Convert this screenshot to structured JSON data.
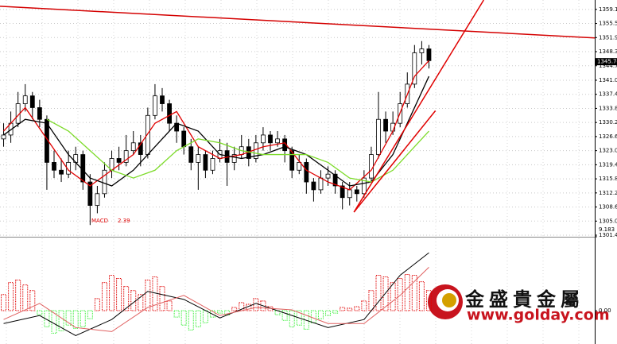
{
  "chart_data": {
    "type": "candlestick",
    "xlim": [
      -0.5,
      82
    ],
    "ylim": [
      1301.0,
      1361.5
    ],
    "grid": true,
    "yticks": [
      {
        "value": 1359.1,
        "label": "1359.10"
      },
      {
        "value": 1355.5,
        "label": "1355.50"
      },
      {
        "value": 1351.9,
        "label": "1351.90"
      },
      {
        "value": 1348.3,
        "label": "1348.30"
      },
      {
        "value": 1344.7,
        "label": "1344.70"
      },
      {
        "value": 1341.0,
        "label": "1341.00"
      },
      {
        "value": 1337.4,
        "label": "1337.40"
      },
      {
        "value": 1333.8,
        "label": "1333.80"
      },
      {
        "value": 1330.2,
        "label": "1330.20"
      },
      {
        "value": 1326.6,
        "label": "1326.60"
      },
      {
        "value": 1323.0,
        "label": "1323.00"
      },
      {
        "value": 1319.4,
        "label": "1319.40"
      },
      {
        "value": 1315.8,
        "label": "1315.80"
      },
      {
        "value": 1312.2,
        "label": "1312.20"
      },
      {
        "value": 1308.6,
        "label": "1308.60"
      },
      {
        "value": 1305.0,
        "label": "1305.00"
      },
      {
        "value": 1301.4,
        "label": "1301.40"
      }
    ],
    "last_price": 1345.74,
    "up_color": "#ffffff",
    "down_color": "#000000",
    "ohlc": [
      [
        1326,
        1330,
        1324,
        1327
      ],
      [
        1327,
        1333,
        1325,
        1330
      ],
      [
        1330,
        1338,
        1329,
        1335
      ],
      [
        1335,
        1340,
        1333,
        1337
      ],
      [
        1337,
        1338,
        1331,
        1334
      ],
      [
        1334,
        1336,
        1329,
        1331
      ],
      [
        1331,
        1332,
        1313,
        1320
      ],
      [
        1320,
        1323,
        1316,
        1318
      ],
      [
        1318,
        1321,
        1315,
        1317
      ],
      [
        1317,
        1323,
        1316,
        1320
      ],
      [
        1320,
        1324,
        1318,
        1322
      ],
      [
        1322,
        1323,
        1313,
        1315
      ],
      [
        1315,
        1317,
        1304,
        1309
      ],
      [
        1309,
        1314,
        1307,
        1312
      ],
      [
        1312,
        1320,
        1311,
        1318
      ],
      [
        1318,
        1323,
        1316,
        1321
      ],
      [
        1321,
        1324,
        1318,
        1320
      ],
      [
        1320,
        1327,
        1319,
        1323
      ],
      [
        1323,
        1328,
        1322,
        1325
      ],
      [
        1325,
        1327,
        1319,
        1322
      ],
      [
        1322,
        1334,
        1321,
        1332
      ],
      [
        1332,
        1340,
        1331,
        1337
      ],
      [
        1337,
        1339,
        1333,
        1335
      ],
      [
        1335,
        1336,
        1328,
        1330
      ],
      [
        1330,
        1332,
        1325,
        1328
      ],
      [
        1328,
        1329,
        1322,
        1324
      ],
      [
        1324,
        1326,
        1318,
        1320
      ],
      [
        1320,
        1324,
        1313,
        1322
      ],
      [
        1322,
        1323,
        1316,
        1318
      ],
      [
        1318,
        1323,
        1317,
        1321
      ],
      [
        1321,
        1326,
        1320,
        1323
      ],
      [
        1323,
        1325,
        1314,
        1320
      ],
      [
        1320,
        1324,
        1318,
        1322
      ],
      [
        1322,
        1327,
        1321,
        1324
      ],
      [
        1324,
        1326,
        1319,
        1321
      ],
      [
        1321,
        1327,
        1320,
        1325
      ],
      [
        1325,
        1329,
        1323,
        1327
      ],
      [
        1327,
        1328,
        1323,
        1325
      ],
      [
        1325,
        1328,
        1324,
        1326
      ],
      [
        1326,
        1327,
        1320,
        1323
      ],
      [
        1323,
        1324,
        1316,
        1318
      ],
      [
        1318,
        1322,
        1317,
        1320
      ],
      [
        1320,
        1321,
        1312,
        1315
      ],
      [
        1315,
        1316,
        1310,
        1313
      ],
      [
        1313,
        1318,
        1312,
        1316
      ],
      [
        1316,
        1319,
        1314,
        1317
      ],
      [
        1317,
        1318,
        1312,
        1314
      ],
      [
        1314,
        1315,
        1308,
        1311
      ],
      [
        1311,
        1315,
        1309,
        1313
      ],
      [
        1313,
        1314,
        1310,
        1312
      ],
      [
        1312,
        1318,
        1311,
        1316
      ],
      [
        1316,
        1324,
        1315,
        1322
      ],
      [
        1322,
        1338,
        1321,
        1331
      ],
      [
        1331,
        1333,
        1325,
        1328
      ],
      [
        1328,
        1333,
        1327,
        1330
      ],
      [
        1330,
        1338,
        1329,
        1335
      ],
      [
        1335,
        1343,
        1334,
        1340
      ],
      [
        1340,
        1350,
        1339,
        1348
      ],
      [
        1348,
        1351,
        1345,
        1349
      ],
      [
        1349,
        1350,
        1344,
        1346
      ]
    ],
    "ma_x": [
      0,
      3,
      6,
      9,
      12,
      15,
      18,
      21,
      24,
      27,
      30,
      33,
      36,
      39,
      42,
      45,
      48,
      51,
      54,
      57,
      59
    ],
    "moving_averages": [
      {
        "color": "#e00000",
        "values": [
          1328,
          1334,
          1326,
          1318,
          1314,
          1318,
          1322,
          1330,
          1333,
          1324,
          1321,
          1322,
          1324,
          1325,
          1318,
          1315,
          1313,
          1318,
          1328,
          1342,
          1346
        ]
      },
      {
        "color": "#000000",
        "values": [
          1327,
          1331,
          1330,
          1322,
          1316,
          1314,
          1318,
          1324,
          1330,
          1328,
          1322,
          1321,
          1322,
          1324,
          1322,
          1318,
          1314,
          1315,
          1322,
          1334,
          1342
        ]
      },
      {
        "color": "#7ddb2a",
        "values": [
          null,
          null,
          1331,
          1328,
          1323,
          1318,
          1316,
          1318,
          1323,
          1326,
          1325,
          1323,
          1322,
          1322,
          1322,
          1320,
          1316,
          1315,
          1318,
          1324,
          1328
        ]
      }
    ],
    "trendlines": [
      {
        "color": "#d40000",
        "x": [
          -0.5,
          82
        ],
        "values": [
          1359.9,
          1351.8
        ]
      },
      {
        "color": "#e00000",
        "x": [
          48.6,
          66.6
        ],
        "values": [
          1307.3,
          1361.5
        ]
      },
      {
        "color": "#e00000",
        "x": [
          48.6,
          59.9
        ],
        "values": [
          1307.3,
          1333.2
        ]
      }
    ],
    "macd": {
      "label": "MACD",
      "value": 2.39,
      "ylim": [
        -4.14,
        9.183
      ],
      "yticks": [
        9.183,
        {
          "value": 0,
          "label": "0.00"
        }
      ],
      "pos_color": "#e00000",
      "neg_color": "#33ee33",
      "histogram": [
        2.0,
        3.5,
        3.8,
        3.2,
        2.5,
        -0.5,
        -2.0,
        -2.8,
        -2.5,
        -1.8,
        -2.2,
        -2.0,
        -1.0,
        1.5,
        3.5,
        4.4,
        4.0,
        3.0,
        2.5,
        2.0,
        3.8,
        4.2,
        3.0,
        1.2,
        -0.8,
        -1.8,
        -2.4,
        -2.0,
        -1.5,
        -0.8,
        -0.3,
        -0.5,
        0.4,
        1.0,
        0.8,
        1.5,
        1.2,
        0.5,
        -0.5,
        -1.2,
        -2.0,
        -1.8,
        -2.3,
        -1.5,
        -1.0,
        -0.6,
        -0.3,
        0.4,
        0.3,
        0.5,
        1.2,
        2.5,
        4.4,
        4.2,
        3.5,
        4.0,
        4.5,
        4.4,
        3.6,
        2.5
      ],
      "line_x": [
        0,
        5,
        10,
        15,
        20,
        25,
        30,
        35,
        40,
        45,
        50,
        55,
        59
      ],
      "lines": [
        {
          "color": "#000000",
          "values": [
            -1.6,
            -0.6,
            -3.1,
            -1.1,
            2.4,
            1.4,
            -0.9,
            0.9,
            -0.6,
            -2.1,
            -1.1,
            4.4,
            7.2
          ]
        },
        {
          "color": "#e06060",
          "values": [
            -1.1,
            0.9,
            -2.1,
            -2.6,
            0.4,
            1.9,
            -0.6,
            0.4,
            0.1,
            -1.6,
            -1.6,
            1.9,
            5.4
          ]
        }
      ]
    },
    "watermark": {
      "name": "金盛貴金屬",
      "url": "www.golday.com"
    }
  }
}
